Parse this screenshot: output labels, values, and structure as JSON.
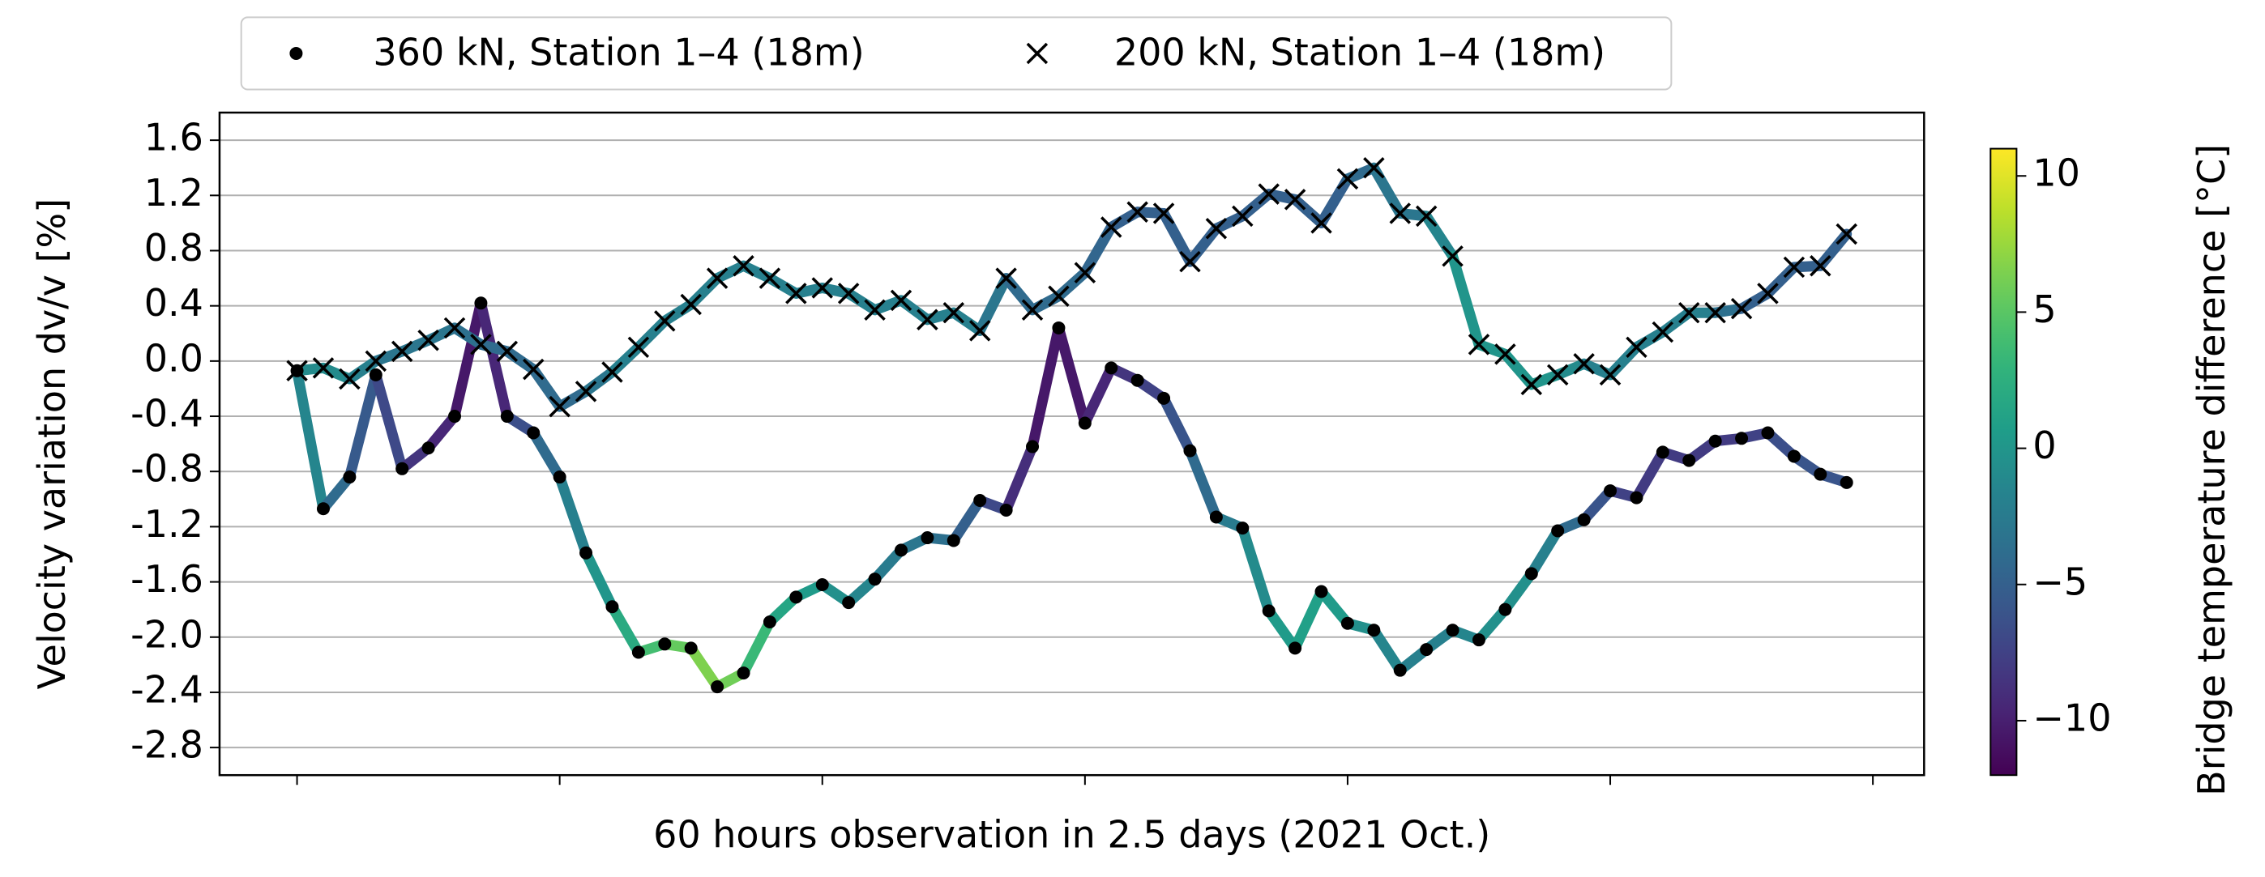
{
  "chart_data": {
    "type": "line",
    "xlabel": "60 hours observation in 2.5 days (2021 Oct.)",
    "ylabel": "Velocity variation dv/v [%]",
    "x": [
      0,
      1,
      2,
      3,
      4,
      5,
      6,
      7,
      8,
      9,
      10,
      11,
      12,
      13,
      14,
      15,
      16,
      17,
      18,
      19,
      20,
      21,
      22,
      23,
      24,
      25,
      26,
      27,
      28,
      29,
      30,
      31,
      32,
      33,
      34,
      35,
      36,
      37,
      38,
      39,
      40,
      41,
      42,
      43,
      44,
      45,
      46,
      47,
      48,
      49,
      50,
      51,
      52,
      53,
      54,
      55,
      56,
      57,
      58,
      59
    ],
    "xlim": [
      -2.95,
      61.95
    ],
    "xticks": [
      0,
      10,
      20,
      30,
      40,
      50,
      60
    ],
    "ylim": [
      -3.0,
      1.8
    ],
    "yticks": [
      1.6,
      1.2,
      0.8,
      0.4,
      {
        "value": 0,
        "label": "0.0"
      },
      -0.4,
      -0.8,
      -1.2,
      -1.6,
      {
        "value": -2,
        "label": "-2.0"
      },
      -2.4,
      -2.8
    ],
    "grid": true,
    "legend": "top",
    "series": [
      {
        "name": "360 kN, Station 1–4 (18m)",
        "marker": "dot",
        "values": [
          -0.07,
          -1.07,
          -0.84,
          -0.1,
          -0.78,
          -0.63,
          -0.4,
          0.42,
          -0.4,
          -0.52,
          -0.84,
          -1.39,
          -1.78,
          -2.11,
          -2.05,
          -2.08,
          -2.36,
          -2.26,
          -1.89,
          -1.71,
          -1.62,
          -1.75,
          -1.58,
          -1.37,
          -1.28,
          -1.3,
          -1.01,
          -1.08,
          -0.62,
          0.24,
          -0.45,
          -0.05,
          -0.14,
          -0.27,
          -0.65,
          -1.13,
          -1.21,
          -1.81,
          -2.08,
          -1.67,
          -1.9,
          -1.95,
          -2.24,
          -2.09,
          -1.95,
          -2.02,
          -1.8,
          -1.54,
          -1.23,
          -1.15,
          -0.94,
          -0.99,
          -0.66,
          -0.72,
          -0.58,
          -0.56,
          -0.52,
          -0.69,
          -0.82,
          -0.88
        ],
        "color_values": [
          0,
          -3,
          -5,
          -6,
          -8,
          -9,
          -10,
          -11,
          -8,
          -5,
          -3,
          -1,
          1,
          3,
          5,
          6,
          7,
          5,
          2,
          1,
          0,
          -1,
          -2,
          -3,
          -3,
          -4,
          -6,
          -8,
          -10,
          -11,
          -10,
          -9,
          -8,
          -7,
          -5,
          -3,
          -2,
          0,
          1,
          1,
          0,
          -1,
          -2,
          -2,
          -2,
          -1,
          0,
          -1,
          -3,
          -5,
          -7,
          -8,
          -8,
          -8,
          -8,
          -8,
          -7,
          -6,
          -6,
          -6
        ]
      },
      {
        "name": "200 kN, Station 1–4 (18m)",
        "marker": "cross",
        "values": [
          -0.07,
          -0.05,
          -0.13,
          0.0,
          0.07,
          0.15,
          0.24,
          0.12,
          0.07,
          -0.06,
          -0.33,
          -0.22,
          -0.08,
          0.1,
          0.29,
          0.41,
          0.6,
          0.69,
          0.6,
          0.49,
          0.53,
          0.49,
          0.37,
          0.44,
          0.3,
          0.35,
          0.22,
          0.6,
          0.37,
          0.47,
          0.64,
          0.97,
          1.08,
          1.07,
          0.72,
          0.96,
          1.05,
          1.21,
          1.17,
          1.0,
          1.32,
          1.4,
          1.07,
          1.05,
          0.76,
          0.12,
          0.05,
          -0.17,
          -0.1,
          -0.02,
          -0.1,
          0.1,
          0.21,
          0.35,
          0.35,
          0.38,
          0.49,
          0.68,
          0.69,
          0.92
        ],
        "color_values": [
          -1,
          -1,
          -1,
          -3,
          -3,
          -3,
          -3,
          -4,
          -4,
          -4,
          -4,
          -4,
          -2,
          -2,
          -2,
          -2,
          -2,
          -2,
          -2,
          -2,
          -2,
          -2,
          -2,
          -2,
          -2,
          -2,
          -2,
          -4,
          -4,
          -4,
          -4,
          -5,
          -5,
          -5,
          -5,
          -5,
          -5,
          -5,
          -5,
          -5,
          -5,
          -3,
          -3,
          -3,
          0,
          0,
          0,
          0,
          0,
          -2,
          -2,
          -2,
          -2,
          -2,
          -2,
          -5,
          -5,
          -5,
          -5,
          -5
        ]
      }
    ],
    "colorbar": {
      "label": "Bridge temperature difference [°C]",
      "colormap": "viridis",
      "clim": [
        -12,
        11
      ],
      "ticks": [
        10,
        5,
        0,
        {
          "value": -5,
          "label": "−5"
        },
        {
          "value": -10,
          "label": "−10"
        }
      ]
    }
  }
}
